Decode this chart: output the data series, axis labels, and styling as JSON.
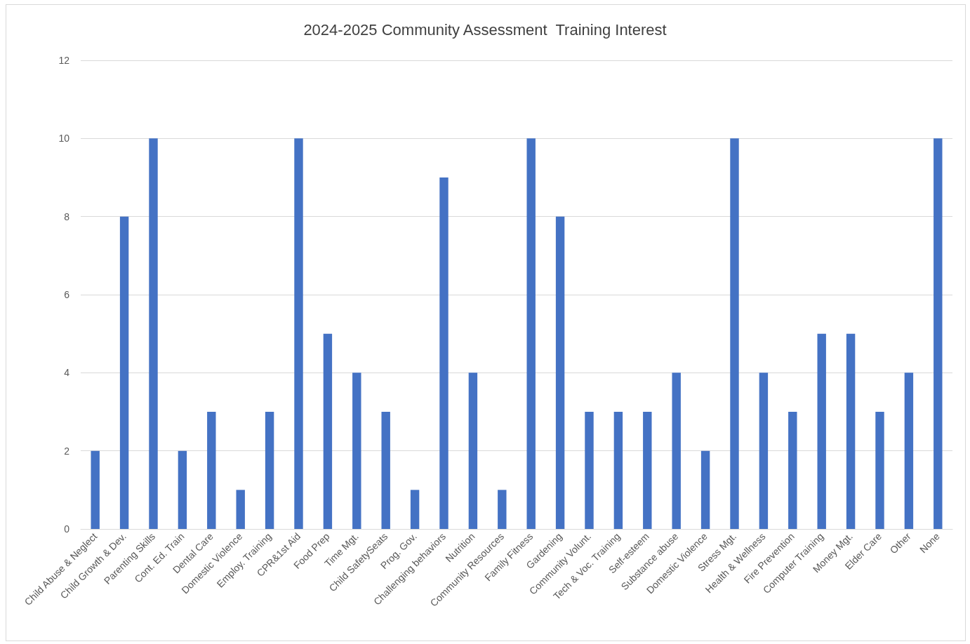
{
  "chart_data": {
    "type": "bar",
    "title": "2024-2025 Community Assessment  Training Interest",
    "categories": [
      "Child Abuse & Neglect",
      "Child Growth & Dev.",
      "Parenting Skills",
      "Cont. Ed. Train",
      "Dental Care",
      "Domestic Violence",
      "Employ. Training",
      "CPR&1st Aid",
      "Food Prep",
      "Time Mgt.",
      "Child SafetySeats",
      "Prog. Gov.",
      "Challenging behaviors",
      "Nutrition",
      "Community Resources",
      "Family Fitness",
      "Gardening",
      "Community Volunt.",
      "Tech & Voc. Training",
      "Self-esteem",
      "Substance abuse",
      "Domestic Violence",
      "Stress Mgt.",
      "Health & Wellness",
      "Fire Prevention",
      "Computer Training",
      "Money Mgt.",
      "Elder Care",
      "Other",
      "None"
    ],
    "values": [
      2,
      8,
      10,
      2,
      3,
      1,
      3,
      10,
      5,
      4,
      3,
      1,
      9,
      4,
      1,
      10,
      8,
      3,
      3,
      3,
      4,
      2,
      10,
      4,
      3,
      5,
      5,
      3,
      4,
      10
    ],
    "color": "#4472c4",
    "ylim": [
      0,
      12
    ],
    "yticks": [
      0,
      2,
      4,
      6,
      8,
      10,
      12
    ],
    "grid": "y"
  }
}
